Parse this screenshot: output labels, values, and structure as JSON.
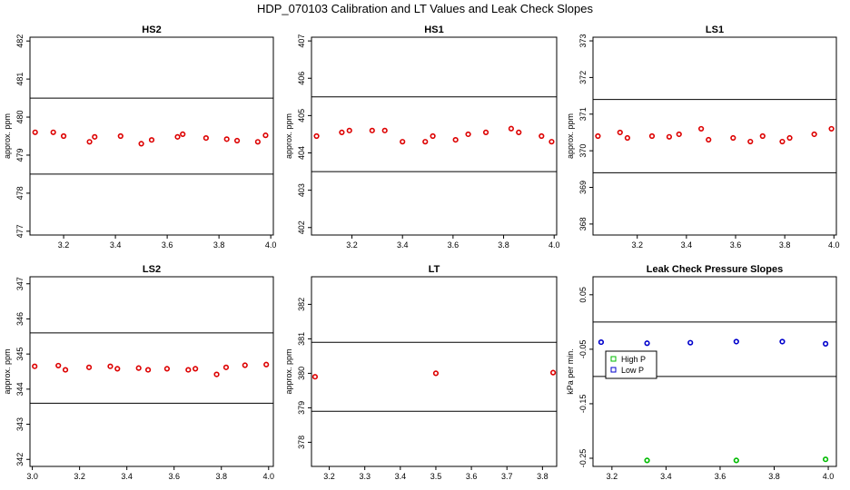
{
  "title": "HDP_070103  Calibration and LT Values and Leak Check Slopes",
  "chart_data": [
    {
      "type": "scatter",
      "title": "HS2",
      "ylabel": "approx. ppm",
      "xlim": [
        3.07,
        4.01
      ],
      "ylim": [
        476.9,
        482.1
      ],
      "xticks": [
        3.2,
        3.4,
        3.6,
        3.8,
        4.0
      ],
      "xtick_labels": [
        "3.2",
        "3.4",
        "3.6",
        "3.8",
        "4.0"
      ],
      "yticks": [
        477,
        478,
        479,
        480,
        481,
        482
      ],
      "ytick_labels": [
        "477",
        "478",
        "479",
        "480",
        "481",
        "482"
      ],
      "hlines": [
        480.5,
        478.5
      ],
      "series": [
        {
          "color": "#dd0000",
          "x": [
            3.09,
            3.16,
            3.2,
            3.3,
            3.32,
            3.42,
            3.5,
            3.54,
            3.64,
            3.66,
            3.75,
            3.83,
            3.87,
            3.95,
            3.98
          ],
          "y": [
            479.6,
            479.6,
            479.5,
            479.35,
            479.48,
            479.5,
            479.3,
            479.4,
            479.48,
            479.55,
            479.45,
            479.42,
            479.38,
            479.35,
            479.52
          ]
        }
      ]
    },
    {
      "type": "scatter",
      "title": "HS1",
      "ylabel": "approx. ppm",
      "xlim": [
        3.04,
        4.01
      ],
      "ylim": [
        401.8,
        407.1
      ],
      "xticks": [
        3.2,
        3.4,
        3.6,
        3.8,
        4.0
      ],
      "xtick_labels": [
        "3.2",
        "3.4",
        "3.6",
        "3.8",
        "4.0"
      ],
      "yticks": [
        402,
        403,
        404,
        405,
        406,
        407
      ],
      "ytick_labels": [
        "402",
        "403",
        "404",
        "405",
        "406",
        "407"
      ],
      "hlines": [
        405.5,
        403.5
      ],
      "series": [
        {
          "color": "#dd0000",
          "x": [
            3.06,
            3.16,
            3.19,
            3.28,
            3.33,
            3.4,
            3.49,
            3.52,
            3.61,
            3.66,
            3.73,
            3.83,
            3.86,
            3.95,
            3.99
          ],
          "y": [
            404.45,
            404.55,
            404.6,
            404.6,
            404.6,
            404.3,
            404.3,
            404.45,
            404.35,
            404.5,
            404.55,
            404.65,
            404.55,
            404.45,
            404.3
          ]
        }
      ]
    },
    {
      "type": "scatter",
      "title": "LS1",
      "ylabel": "approx. ppm",
      "xlim": [
        3.02,
        4.01
      ],
      "ylim": [
        367.7,
        373.1
      ],
      "xticks": [
        3.2,
        3.4,
        3.6,
        3.8,
        4.0
      ],
      "xtick_labels": [
        "3.2",
        "3.4",
        "3.6",
        "3.8",
        "4.0"
      ],
      "yticks": [
        368,
        369,
        370,
        371,
        372,
        373
      ],
      "ytick_labels": [
        "368",
        "369",
        "370",
        "371",
        "372",
        "373"
      ],
      "hlines": [
        371.4,
        369.4
      ],
      "series": [
        {
          "color": "#dd0000",
          "x": [
            3.04,
            3.13,
            3.16,
            3.26,
            3.33,
            3.37,
            3.46,
            3.49,
            3.59,
            3.66,
            3.71,
            3.79,
            3.82,
            3.92,
            3.99
          ],
          "y": [
            370.4,
            370.5,
            370.35,
            370.4,
            370.38,
            370.45,
            370.6,
            370.3,
            370.35,
            370.25,
            370.4,
            370.25,
            370.35,
            370.45,
            370.6
          ]
        }
      ]
    },
    {
      "type": "scatter",
      "title": "LS2",
      "ylabel": "approx. ppm",
      "xlim": [
        2.99,
        4.02
      ],
      "ylim": [
        341.8,
        347.2
      ],
      "xticks": [
        3.0,
        3.2,
        3.4,
        3.6,
        3.8,
        4.0
      ],
      "xtick_labels": [
        "3.0",
        "3.2",
        "3.4",
        "3.6",
        "3.8",
        "4.0"
      ],
      "yticks": [
        342,
        343,
        344,
        345,
        346,
        347
      ],
      "ytick_labels": [
        "342",
        "343",
        "344",
        "345",
        "346",
        "347"
      ],
      "hlines": [
        345.6,
        343.6
      ],
      "series": [
        {
          "color": "#dd0000",
          "x": [
            3.01,
            3.11,
            3.14,
            3.24,
            3.33,
            3.36,
            3.45,
            3.49,
            3.57,
            3.66,
            3.69,
            3.78,
            3.82,
            3.9,
            3.99
          ],
          "y": [
            344.65,
            344.67,
            344.55,
            344.62,
            344.65,
            344.58,
            344.6,
            344.55,
            344.58,
            344.55,
            344.58,
            344.42,
            344.62,
            344.68,
            344.7
          ]
        }
      ]
    },
    {
      "type": "scatter",
      "title": "LT",
      "ylabel": "approx. ppm",
      "xlim": [
        3.15,
        3.84
      ],
      "ylim": [
        377.3,
        382.8
      ],
      "xticks": [
        3.2,
        3.3,
        3.4,
        3.5,
        3.6,
        3.7,
        3.8
      ],
      "xtick_labels": [
        "3.2",
        "3.3",
        "3.4",
        "3.5",
        "3.6",
        "3.7",
        "3.8"
      ],
      "yticks": [
        378,
        379,
        380,
        381,
        382
      ],
      "ytick_labels": [
        "378",
        "379",
        "380",
        "381",
        "382"
      ],
      "hlines": [
        380.9,
        378.9
      ],
      "series": [
        {
          "color": "#dd0000",
          "x": [
            3.16,
            3.5,
            3.83
          ],
          "y": [
            379.9,
            380.0,
            380.02
          ]
        }
      ]
    },
    {
      "type": "scatter",
      "title": "Leak Check Pressure Slopes",
      "ylabel": "kPa per min.",
      "xlim": [
        3.13,
        4.03
      ],
      "ylim": [
        -0.265,
        0.083
      ],
      "xticks": [
        3.2,
        3.4,
        3.6,
        3.8,
        4.0
      ],
      "xtick_labels": [
        "3.2",
        "3.4",
        "3.6",
        "3.8",
        "4.0"
      ],
      "yticks": [
        -0.25,
        -0.15,
        -0.05,
        0.05
      ],
      "ytick_labels": [
        "-0.25",
        "-0.15",
        "-0.05",
        "0.05"
      ],
      "hlines": [
        0.0,
        -0.1
      ],
      "legend": {
        "placement": "left",
        "entries": [
          "High P",
          "Low P"
        ]
      },
      "series": [
        {
          "name": "High P",
          "color": "#00bb00",
          "x": [
            3.33,
            3.66,
            3.99
          ],
          "y": [
            -0.254,
            -0.254,
            -0.252
          ]
        },
        {
          "name": "Low P",
          "color": "#0000cc",
          "x": [
            3.16,
            3.33,
            3.49,
            3.66,
            3.83,
            3.99
          ],
          "y": [
            -0.037,
            -0.039,
            -0.038,
            -0.036,
            -0.036,
            -0.04
          ]
        }
      ]
    }
  ]
}
